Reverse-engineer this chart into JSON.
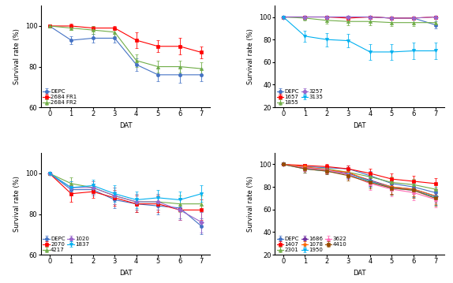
{
  "plots": [
    {
      "series": [
        {
          "label": "DEPC",
          "color": "#4472C4",
          "marker": "o",
          "y": [
            100,
            93,
            94,
            94,
            81,
            76,
            76,
            76
          ],
          "yerr": [
            0,
            2,
            2,
            2,
            3,
            3,
            4,
            3
          ]
        },
        {
          "label": "2684 FR1",
          "color": "#FF0000",
          "marker": "s",
          "y": [
            100,
            100,
            99,
            99,
            93,
            90,
            90,
            87
          ],
          "yerr": [
            0,
            1,
            1,
            1,
            4,
            3,
            4,
            3
          ]
        },
        {
          "label": "2684 FR2",
          "color": "#70AD47",
          "marker": "^",
          "y": [
            100,
            99,
            98,
            97,
            83,
            80,
            80,
            79
          ],
          "yerr": [
            0,
            1,
            2,
            2,
            3,
            3,
            3,
            3
          ]
        }
      ],
      "ylim": [
        60,
        110
      ],
      "yticks": [
        60,
        80,
        100
      ],
      "legend_ncol": 1
    },
    {
      "series": [
        {
          "label": "DEPC",
          "color": "#4472C4",
          "marker": "o",
          "y": [
            100,
            100,
            100,
            100,
            100,
            99,
            99,
            93
          ],
          "yerr": [
            0,
            1,
            1,
            1,
            1,
            1,
            1,
            3
          ]
        },
        {
          "label": "1657",
          "color": "#FF0000",
          "marker": "s",
          "y": [
            100,
            100,
            100,
            99,
            100,
            99,
            99,
            100
          ],
          "yerr": [
            0,
            1,
            1,
            2,
            1,
            1,
            1,
            1
          ]
        },
        {
          "label": "1855",
          "color": "#70AD47",
          "marker": "^",
          "y": [
            100,
            99,
            97,
            96,
            96,
            95,
            95,
            95
          ],
          "yerr": [
            0,
            2,
            3,
            3,
            3,
            3,
            3,
            3
          ]
        },
        {
          "label": "3257",
          "color": "#9966CC",
          "marker": "D",
          "y": [
            100,
            100,
            100,
            100,
            100,
            99,
            99,
            100
          ],
          "yerr": [
            0,
            1,
            1,
            1,
            1,
            1,
            1,
            1
          ]
        },
        {
          "label": "3135",
          "color": "#00B0F0",
          "marker": "v",
          "y": [
            100,
            83,
            80,
            79,
            69,
            69,
            70,
            70
          ],
          "yerr": [
            0,
            5,
            6,
            6,
            7,
            7,
            7,
            7
          ]
        }
      ],
      "ylim": [
        20,
        110
      ],
      "yticks": [
        20,
        40,
        60,
        80,
        100
      ],
      "legend_ncol": 2
    },
    {
      "series": [
        {
          "label": "DEPC",
          "color": "#4472C4",
          "marker": "o",
          "y": [
            100,
            92,
            92,
            87,
            85,
            84,
            83,
            74
          ],
          "yerr": [
            0,
            3,
            3,
            4,
            4,
            4,
            5,
            4
          ]
        },
        {
          "label": "2070",
          "color": "#FF0000",
          "marker": "s",
          "y": [
            100,
            90,
            91,
            88,
            85,
            85,
            82,
            82
          ],
          "yerr": [
            0,
            4,
            3,
            4,
            4,
            4,
            5,
            5
          ]
        },
        {
          "label": "4217",
          "color": "#70AD47",
          "marker": "^",
          "y": [
            100,
            95,
            93,
            89,
            86,
            86,
            85,
            85
          ],
          "yerr": [
            0,
            3,
            3,
            4,
            4,
            4,
            4,
            4
          ]
        },
        {
          "label": "1020",
          "color": "#9966CC",
          "marker": "D",
          "y": [
            100,
            93,
            93,
            89,
            86,
            86,
            82,
            76
          ],
          "yerr": [
            0,
            3,
            3,
            4,
            4,
            4,
            5,
            5
          ]
        },
        {
          "label": "1837",
          "color": "#00B0F0",
          "marker": "v",
          "y": [
            100,
            93,
            94,
            90,
            87,
            88,
            87,
            90
          ],
          "yerr": [
            0,
            3,
            3,
            4,
            4,
            4,
            4,
            4
          ]
        }
      ],
      "ylim": [
        60,
        110
      ],
      "yticks": [
        60,
        80,
        100
      ],
      "legend_ncol": 2
    },
    {
      "series": [
        {
          "label": "DEPC",
          "color": "#4472C4",
          "marker": "o",
          "y": [
            100,
            98,
            97,
            96,
            90,
            83,
            80,
            75
          ],
          "yerr": [
            0,
            2,
            2,
            3,
            4,
            5,
            5,
            5
          ]
        },
        {
          "label": "1407",
          "color": "#FF0000",
          "marker": "s",
          "y": [
            100,
            99,
            98,
            96,
            92,
            87,
            85,
            83
          ],
          "yerr": [
            0,
            1,
            2,
            3,
            4,
            5,
            5,
            5
          ]
        },
        {
          "label": "2301",
          "color": "#70AD47",
          "marker": "^",
          "y": [
            100,
            97,
            96,
            93,
            89,
            84,
            82,
            78
          ],
          "yerr": [
            0,
            3,
            3,
            4,
            4,
            5,
            5,
            5
          ]
        },
        {
          "label": "1686",
          "color": "#7030A0",
          "marker": "D",
          "y": [
            100,
            97,
            95,
            92,
            86,
            80,
            78,
            72
          ],
          "yerr": [
            0,
            3,
            3,
            4,
            5,
            6,
            6,
            6
          ]
        },
        {
          "label": "1078",
          "color": "#FF6600",
          "marker": "p",
          "y": [
            100,
            98,
            95,
            93,
            85,
            80,
            78,
            72
          ],
          "yerr": [
            0,
            2,
            3,
            4,
            5,
            6,
            6,
            7
          ]
        },
        {
          "label": "1950",
          "color": "#00B0F0",
          "marker": "v",
          "y": [
            100,
            96,
            94,
            91,
            85,
            79,
            77,
            71
          ],
          "yerr": [
            0,
            3,
            3,
            4,
            5,
            6,
            6,
            7
          ]
        },
        {
          "label": "3622",
          "color": "#FF69B4",
          "marker": "^",
          "y": [
            100,
            97,
            95,
            91,
            83,
            78,
            75,
            69
          ],
          "yerr": [
            0,
            3,
            3,
            4,
            6,
            6,
            7,
            7
          ]
        },
        {
          "label": "4410",
          "color": "#964B00",
          "marker": "s",
          "y": [
            100,
            96,
            94,
            90,
            84,
            79,
            77,
            70
          ],
          "yerr": [
            0,
            3,
            3,
            4,
            5,
            6,
            7,
            7
          ]
        }
      ],
      "ylim": [
        20,
        110
      ],
      "yticks": [
        20,
        40,
        60,
        80,
        100
      ],
      "legend_ncol": 3
    }
  ],
  "x": [
    0,
    1,
    2,
    3,
    4,
    5,
    6,
    7
  ],
  "xlabel": "DAT",
  "ylabel": "Survival rate (%)",
  "fontsize": 6,
  "linewidth": 0.8,
  "markersize": 3.0,
  "capsize": 1.5,
  "elinewidth": 0.6
}
